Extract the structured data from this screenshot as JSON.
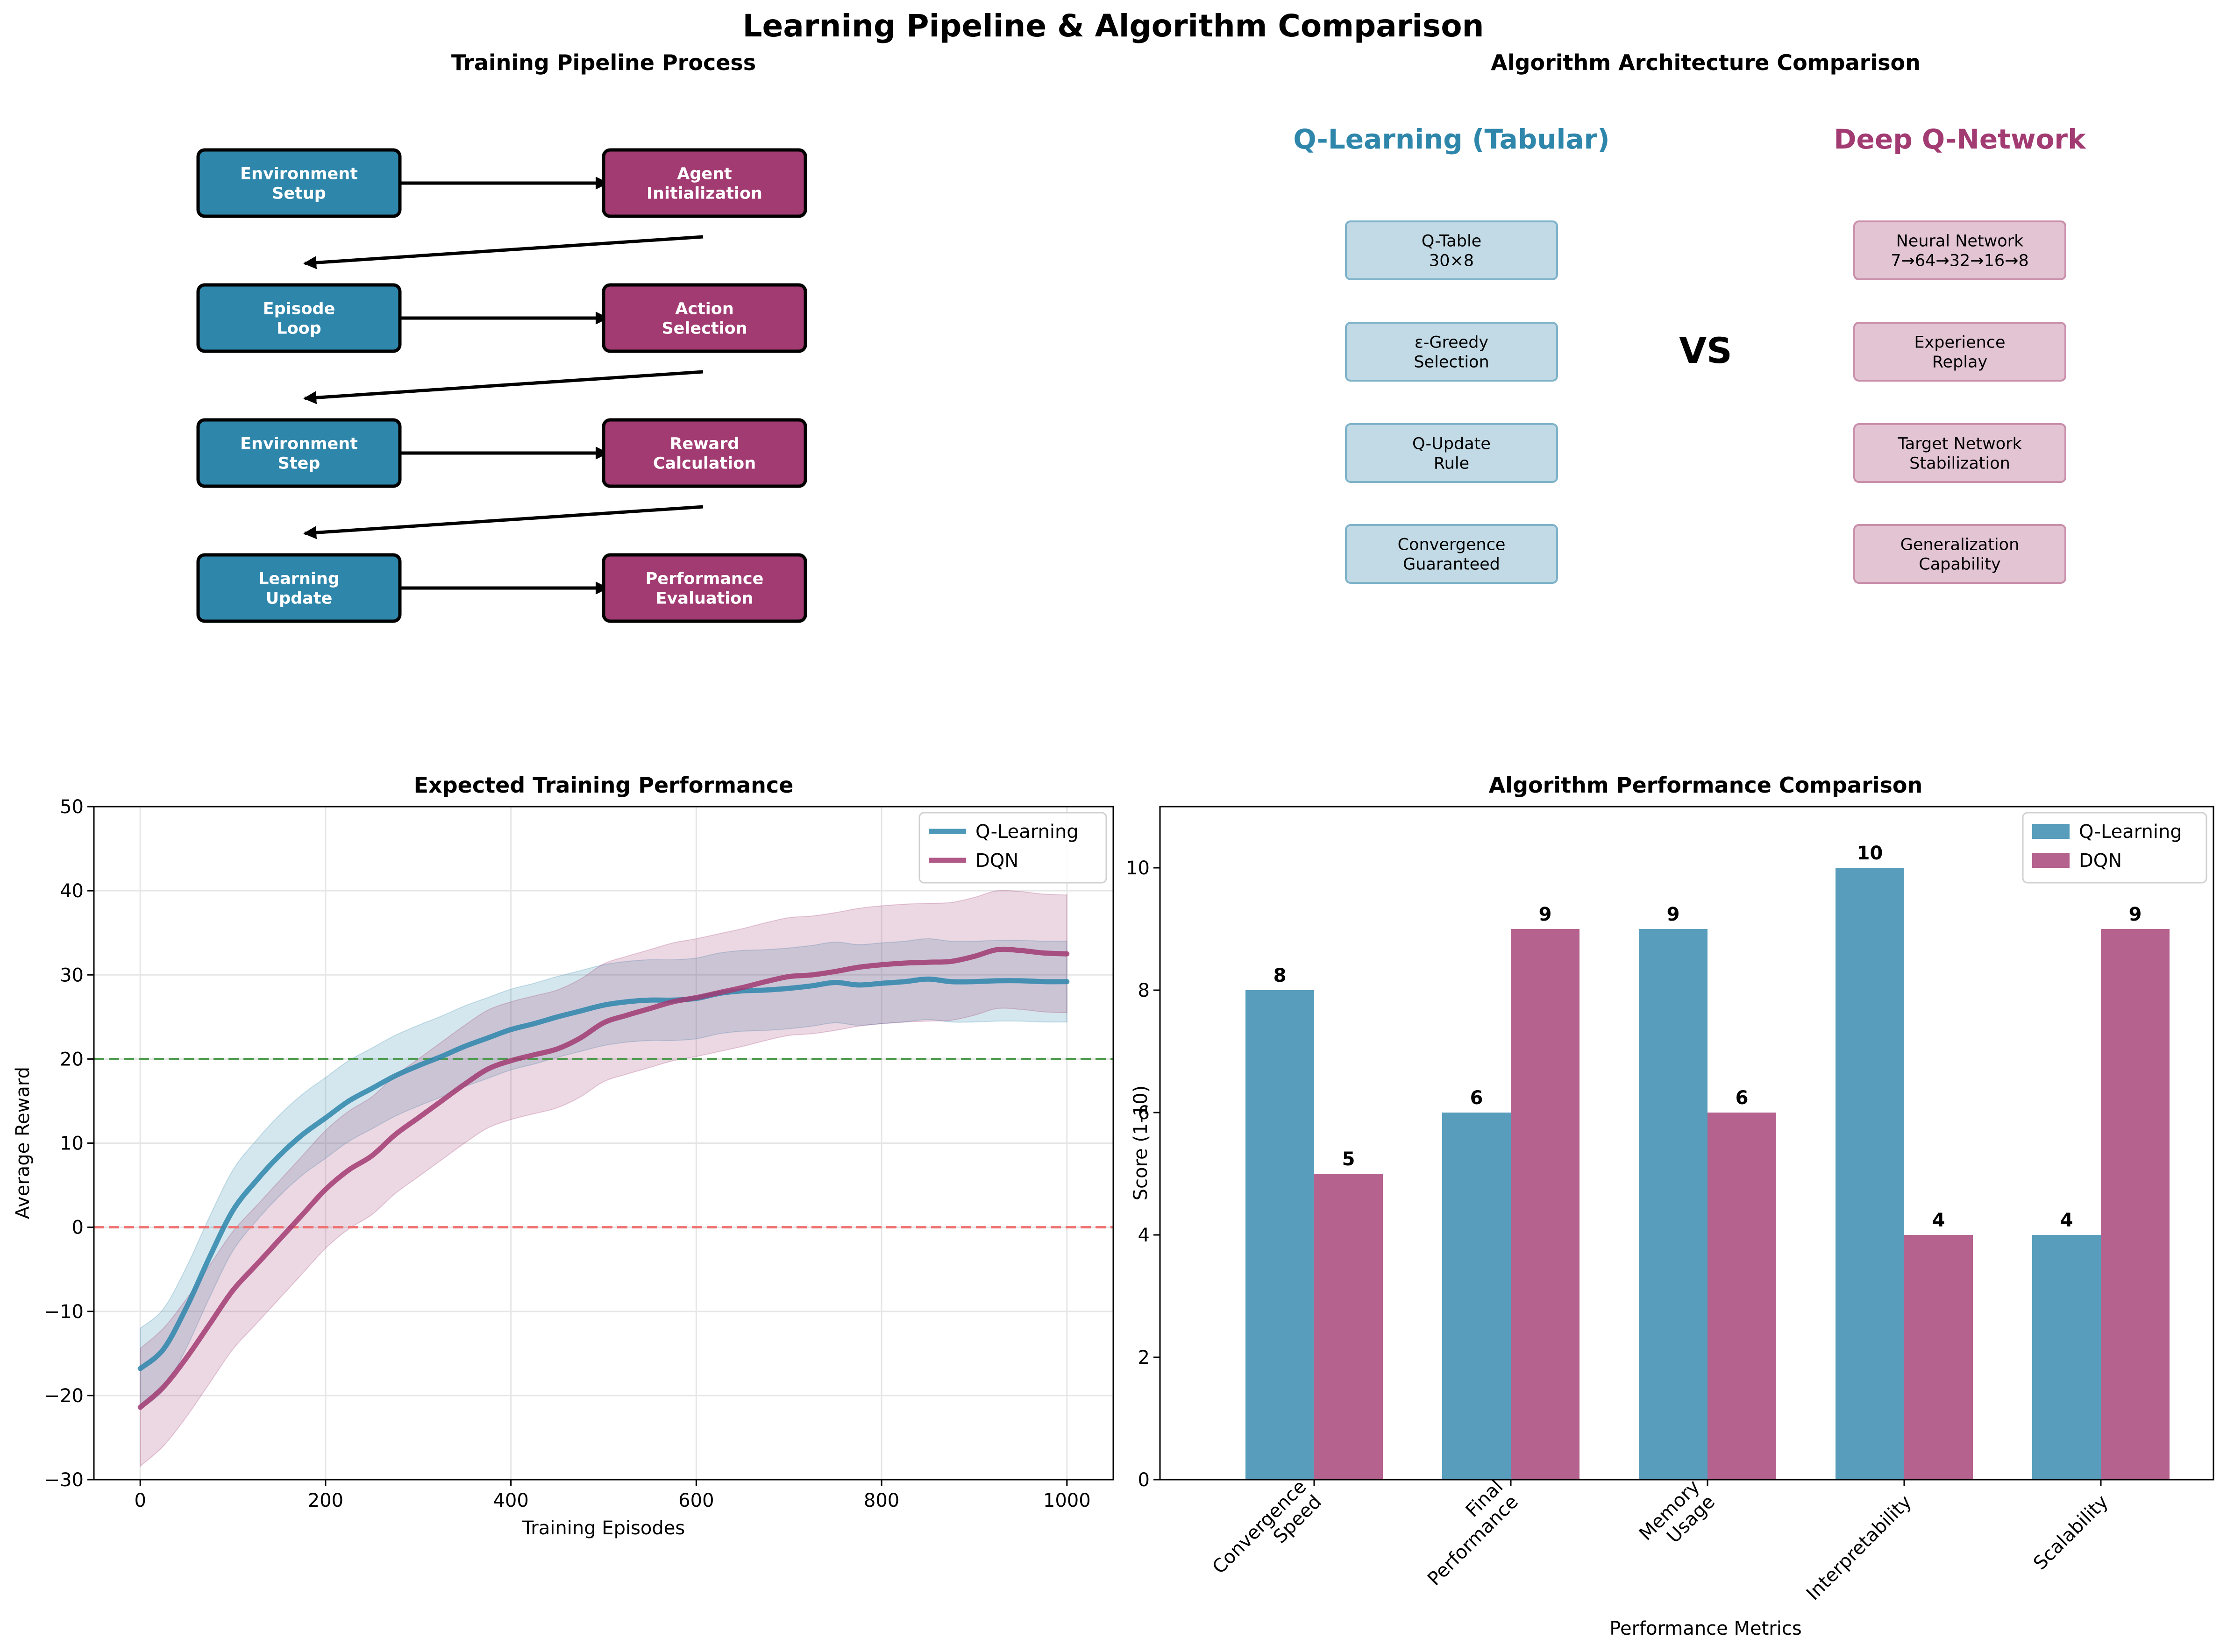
{
  "suptitle": "Learning Pipeline & Algorithm Comparison",
  "colors": {
    "blue": "#2E86AB",
    "magenta": "#A23B72",
    "blue_light": "#c1dae5",
    "magenta_light": "#e3c4d3",
    "green_dash": "#4c9a4c",
    "red_dash": "#f07070"
  },
  "pipeline": {
    "title": "Training Pipeline Process",
    "steps": [
      {
        "text": "Environment\nSetup",
        "color": "blue"
      },
      {
        "text": "Agent\nInitialization",
        "color": "magenta"
      },
      {
        "text": "Episode\nLoop",
        "color": "blue"
      },
      {
        "text": "Action\nSelection",
        "color": "magenta"
      },
      {
        "text": "Environment\nStep",
        "color": "blue"
      },
      {
        "text": "Reward\nCalculation",
        "color": "magenta"
      },
      {
        "text": "Learning\nUpdate",
        "color": "blue"
      },
      {
        "text": "Performance\nEvaluation",
        "color": "magenta"
      }
    ]
  },
  "architecture": {
    "title": "Algorithm Architecture Comparison",
    "vs": "VS",
    "left_header": "Q-Learning (Tabular)",
    "right_header": "Deep Q-Network",
    "left_items": [
      "Q-Table\n30×8",
      "ε-Greedy\nSelection",
      "Q-Update\nRule",
      "Convergence\nGuaranteed"
    ],
    "right_items": [
      "Neural Network\n7→64→32→16→8",
      "Experience\nReplay",
      "Target Network\nStabilization",
      "Generalization\nCapability"
    ]
  },
  "chart_data": [
    {
      "type": "line",
      "title": "Expected Training Performance",
      "xlabel": "Training Episodes",
      "ylabel": "Average Reward",
      "xlim": [
        -50,
        1050
      ],
      "ylim": [
        -30,
        50
      ],
      "xticks": [
        0,
        200,
        400,
        600,
        800,
        1000
      ],
      "yticks": [
        -30,
        -20,
        -10,
        0,
        10,
        20,
        30,
        40,
        50
      ],
      "grid": true,
      "legend": "top-right",
      "hlines": [
        {
          "y": 20,
          "color": "green_dash"
        },
        {
          "y": 0,
          "color": "red_dash"
        }
      ],
      "x": [
        0,
        25,
        50,
        75,
        100,
        125,
        150,
        175,
        200,
        225,
        250,
        275,
        300,
        325,
        350,
        375,
        400,
        425,
        450,
        475,
        500,
        525,
        550,
        575,
        600,
        625,
        650,
        675,
        700,
        725,
        750,
        775,
        800,
        825,
        850,
        875,
        900,
        925,
        950,
        975,
        1000
      ],
      "series": [
        {
          "name": "Q-Learning",
          "color": "blue",
          "values": [
            -16.8,
            -14.5,
            -9.5,
            -3.5,
            2.0,
            5.5,
            8.5,
            11.0,
            13.0,
            15.0,
            16.5,
            18.0,
            19.2,
            20.3,
            21.5,
            22.5,
            23.5,
            24.2,
            25.0,
            25.7,
            26.4,
            26.8,
            27.0,
            27.0,
            27.2,
            27.8,
            28.1,
            28.2,
            28.4,
            28.7,
            29.1,
            28.8,
            29.0,
            29.2,
            29.5,
            29.2,
            29.2,
            29.3,
            29.3,
            29.2,
            29.2
          ],
          "band": 4.8
        },
        {
          "name": "DQN",
          "color": "magenta",
          "values": [
            -21.4,
            -19.0,
            -15.5,
            -11.5,
            -7.5,
            -4.5,
            -1.5,
            1.5,
            4.5,
            6.8,
            8.5,
            11.0,
            13.0,
            15.0,
            17.0,
            18.8,
            19.8,
            20.5,
            21.2,
            22.5,
            24.3,
            25.2,
            26.0,
            26.8,
            27.3,
            27.9,
            28.5,
            29.2,
            29.8,
            30.0,
            30.4,
            30.9,
            31.2,
            31.4,
            31.5,
            31.6,
            32.2,
            33.0,
            32.9,
            32.6,
            32.5
          ],
          "band": 7.0
        }
      ]
    },
    {
      "type": "bar",
      "title": "Algorithm Performance Comparison",
      "xlabel": "Performance Metrics",
      "ylabel": "Score (1-10)",
      "ylim": [
        0,
        11
      ],
      "yticks": [
        0,
        2,
        4,
        6,
        8,
        10
      ],
      "legend": "top-right",
      "categories": [
        "Convergence\nSpeed",
        "Final\nPerformance",
        "Memory\nUsage",
        "Interpretability",
        "Scalability"
      ],
      "series": [
        {
          "name": "Q-Learning",
          "color": "blue",
          "values": [
            8,
            6,
            9,
            10,
            4
          ]
        },
        {
          "name": "DQN",
          "color": "magenta",
          "values": [
            5,
            9,
            6,
            4,
            9
          ]
        }
      ]
    }
  ]
}
